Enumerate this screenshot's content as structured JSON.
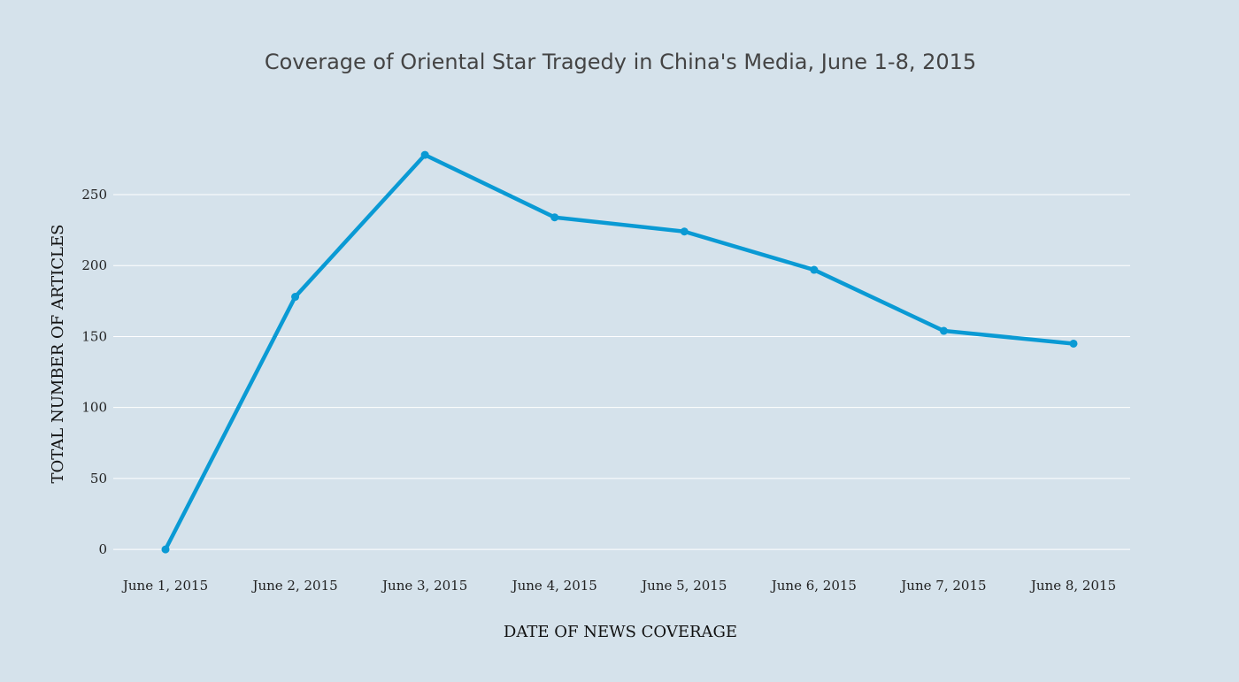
{
  "chart_data": {
    "type": "line",
    "title": "Coverage of Oriental Star Tragedy in China's Media, June 1-8, 2015",
    "xlabel": "DATE OF NEWS COVERAGE",
    "ylabel": "TOTAL NUMBER OF ARTICLES",
    "categories": [
      "June 1, 2015",
      "June 2, 2015",
      "June 3, 2015",
      "June 4, 2015",
      "June 5, 2015",
      "June 6, 2015",
      "June 7, 2015",
      "June 8, 2015"
    ],
    "series": [
      {
        "name": "Total number of articles",
        "values": [
          0,
          178,
          278,
          234,
          224,
          197,
          154,
          145
        ],
        "color": "#0a9ad4"
      }
    ],
    "ylim": [
      -18,
      303
    ],
    "yticks": [
      0,
      50,
      100,
      150,
      200,
      250
    ],
    "grid": true,
    "background": "#d5e2eb",
    "legend": "none"
  }
}
